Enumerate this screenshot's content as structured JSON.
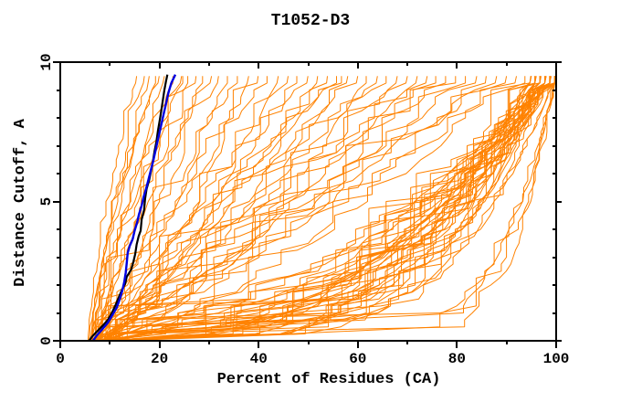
{
  "title": "T1052-D3",
  "colors": {
    "background": "#FFFFFF",
    "axis": "#000000",
    "orange_models": "#FF8200",
    "blue_model": "#0000E0",
    "black_model": "#000000"
  },
  "chart_data": {
    "type": "line",
    "title": "T1052-D3",
    "xlabel": "Percent of Residues (CA)",
    "ylabel": "Distance Cutoff, A",
    "xlim": [
      0,
      100
    ],
    "ylim": [
      0,
      10
    ],
    "x_major_ticks": [
      0,
      20,
      40,
      60,
      80,
      100
    ],
    "x_minor_step": 10,
    "y_major_ticks": [
      0,
      5,
      10
    ],
    "y_minor_step": 1,
    "grid": false,
    "legend": "none",
    "cutoff_max": 9.5,
    "cutoff_step": 0.25,
    "series": [
      {
        "name": "black-model",
        "color": "#000000",
        "stroke_width": 2.2,
        "points": [
          [
            5.8,
            0
          ],
          [
            6.3,
            0.12
          ],
          [
            7.2,
            0.3
          ],
          [
            8.6,
            0.55
          ],
          [
            9.6,
            0.75
          ],
          [
            10.4,
            1.0
          ],
          [
            11.2,
            1.3
          ],
          [
            11.9,
            1.6
          ],
          [
            12.5,
            1.85
          ],
          [
            13.1,
            2.05
          ],
          [
            13.4,
            2.3
          ],
          [
            14.3,
            2.55
          ],
          [
            14.7,
            2.8
          ],
          [
            15.1,
            3.1
          ],
          [
            15.4,
            3.45
          ],
          [
            15.8,
            3.75
          ],
          [
            16.2,
            3.95
          ],
          [
            16.4,
            4.35
          ],
          [
            16.9,
            4.7
          ],
          [
            17.1,
            5.1
          ],
          [
            17.4,
            5.45
          ],
          [
            17.9,
            5.75
          ],
          [
            18.3,
            6.1
          ],
          [
            18.7,
            6.45
          ],
          [
            19.0,
            6.8
          ],
          [
            19.4,
            7.15
          ],
          [
            19.7,
            7.55
          ],
          [
            20.1,
            7.95
          ],
          [
            20.4,
            8.3
          ],
          [
            20.7,
            8.65
          ],
          [
            21.0,
            9.0
          ],
          [
            21.3,
            9.3
          ],
          [
            21.6,
            9.55
          ]
        ]
      },
      {
        "name": "blue-model",
        "color": "#0000E0",
        "stroke_width": 2.4,
        "points": [
          [
            6.6,
            0
          ],
          [
            7.4,
            0.2
          ],
          [
            8.4,
            0.4
          ],
          [
            9.6,
            0.65
          ],
          [
            10.6,
            0.95
          ],
          [
            11.4,
            1.2
          ],
          [
            12.0,
            1.5
          ],
          [
            12.5,
            1.8
          ],
          [
            12.9,
            2.1
          ],
          [
            13.2,
            2.45
          ],
          [
            13.4,
            2.8
          ],
          [
            13.6,
            3.15
          ],
          [
            14.0,
            3.4
          ],
          [
            14.6,
            3.65
          ],
          [
            15.0,
            3.95
          ],
          [
            15.5,
            4.25
          ],
          [
            15.9,
            4.55
          ],
          [
            16.4,
            4.85
          ],
          [
            16.8,
            5.15
          ],
          [
            17.3,
            5.45
          ],
          [
            17.8,
            5.8
          ],
          [
            18.3,
            6.15
          ],
          [
            18.8,
            6.5
          ],
          [
            19.3,
            6.9
          ],
          [
            19.8,
            7.3
          ],
          [
            20.3,
            7.7
          ],
          [
            20.8,
            8.1
          ],
          [
            21.3,
            8.5
          ],
          [
            21.8,
            8.9
          ],
          [
            22.4,
            9.25
          ],
          [
            23.2,
            9.55
          ]
        ]
      },
      {
        "name": "orange-models",
        "color": "#FF8200",
        "stroke_width": 1,
        "curves_spec": "each curve = [start_percent_at_cutoff0, end_percent_at_cutoff9.5, shape_exponent]",
        "curves": [
          [
            5.6,
            15.5,
            1.3
          ],
          [
            5.8,
            17,
            1.1
          ],
          [
            6.0,
            18,
            0.95
          ],
          [
            6.2,
            19.5,
            1.4
          ],
          [
            6.4,
            21,
            1.0
          ],
          [
            6.6,
            23,
            1.2
          ],
          [
            6.8,
            24.5,
            0.9
          ],
          [
            7.0,
            26,
            1.35
          ],
          [
            7.2,
            27.5,
            1.05
          ],
          [
            7.5,
            29,
            0.85
          ],
          [
            7.8,
            30.5,
            1.25
          ],
          [
            8.0,
            32,
            0.95
          ],
          [
            6.5,
            20,
            1.5
          ],
          [
            7.3,
            25,
            1.15
          ],
          [
            6.3,
            34,
            0.7
          ],
          [
            6.6,
            36,
            1.0
          ],
          [
            6.9,
            38,
            0.6
          ],
          [
            7.2,
            40,
            0.9
          ],
          [
            7.5,
            42,
            1.15
          ],
          [
            7.8,
            44,
            0.65
          ],
          [
            8.1,
            46,
            0.95
          ],
          [
            8.4,
            48,
            0.75
          ],
          [
            8.7,
            50,
            1.1
          ],
          [
            9.0,
            52,
            0.6
          ],
          [
            9.3,
            54,
            0.85
          ],
          [
            9.6,
            56,
            1.05
          ],
          [
            6.4,
            58,
            0.7
          ],
          [
            6.8,
            60,
            0.95
          ],
          [
            7.1,
            62,
            0.6
          ],
          [
            7.4,
            64,
            0.85
          ],
          [
            7.7,
            66,
            1.1
          ],
          [
            8.0,
            68,
            0.65
          ],
          [
            8.3,
            70,
            0.9
          ],
          [
            8.6,
            72,
            0.75
          ],
          [
            8.9,
            74,
            1.0
          ],
          [
            9.2,
            76,
            0.6
          ],
          [
            9.5,
            78,
            0.8
          ],
          [
            9.8,
            80,
            1.05
          ],
          [
            6.5,
            82,
            0.7
          ],
          [
            7.0,
            84,
            0.9
          ],
          [
            7.6,
            86,
            0.62
          ],
          [
            8.2,
            88,
            0.82
          ],
          [
            8.8,
            90,
            1.0
          ],
          [
            9.4,
            92,
            0.68
          ],
          [
            9.9,
            94,
            0.88
          ],
          [
            7.9,
            57,
            1.2
          ],
          [
            7.1,
            95,
            0.28
          ],
          [
            7.6,
            96,
            0.35
          ],
          [
            8.1,
            97,
            0.22
          ],
          [
            8.6,
            98,
            0.4
          ],
          [
            9.1,
            99,
            0.26
          ],
          [
            9.6,
            100,
            0.33
          ],
          [
            10.1,
            95,
            0.42
          ],
          [
            10.6,
            96,
            0.24
          ],
          [
            11.1,
            97,
            0.37
          ],
          [
            11.6,
            98,
            0.2
          ],
          [
            12.1,
            99,
            0.31
          ],
          [
            12.6,
            100,
            0.44
          ],
          [
            7.3,
            95,
            0.25
          ],
          [
            7.9,
            96,
            0.38
          ],
          [
            8.5,
            97,
            0.21
          ],
          [
            9.0,
            98,
            0.34
          ],
          [
            9.5,
            99,
            0.43
          ],
          [
            10.0,
            100,
            0.23
          ],
          [
            10.5,
            95,
            0.36
          ],
          [
            11.0,
            96,
            0.27
          ],
          [
            11.5,
            97,
            0.41
          ],
          [
            12.0,
            98,
            0.24
          ],
          [
            12.5,
            99,
            0.32
          ],
          [
            13.0,
            100,
            0.39
          ],
          [
            7.5,
            96,
            0.2
          ],
          [
            8.3,
            97,
            0.45
          ],
          [
            9.2,
            98,
            0.29
          ],
          [
            10.3,
            99,
            0.35
          ],
          [
            11.3,
            100,
            0.22
          ],
          [
            12.3,
            95,
            0.3
          ],
          [
            8.8,
            99,
            0.42
          ],
          [
            9.8,
            97,
            0.26
          ],
          [
            10.8,
            98,
            0.33
          ],
          [
            11.8,
            100,
            0.4
          ],
          [
            8.0,
            100,
            0.5
          ],
          [
            9.0,
            100,
            0.55
          ],
          [
            10.0,
            100,
            0.45
          ],
          [
            11.0,
            100,
            0.6
          ],
          [
            12.0,
            100,
            0.48
          ],
          [
            8.5,
            100,
            0.58
          ],
          [
            9.5,
            100,
            0.52
          ],
          [
            10.5,
            100,
            0.42
          ],
          [
            9.0,
            100,
            0.1
          ],
          [
            10.5,
            100,
            0.12
          ],
          [
            12.0,
            100,
            0.09
          ],
          [
            13.5,
            100,
            0.13
          ]
        ]
      }
    ]
  }
}
